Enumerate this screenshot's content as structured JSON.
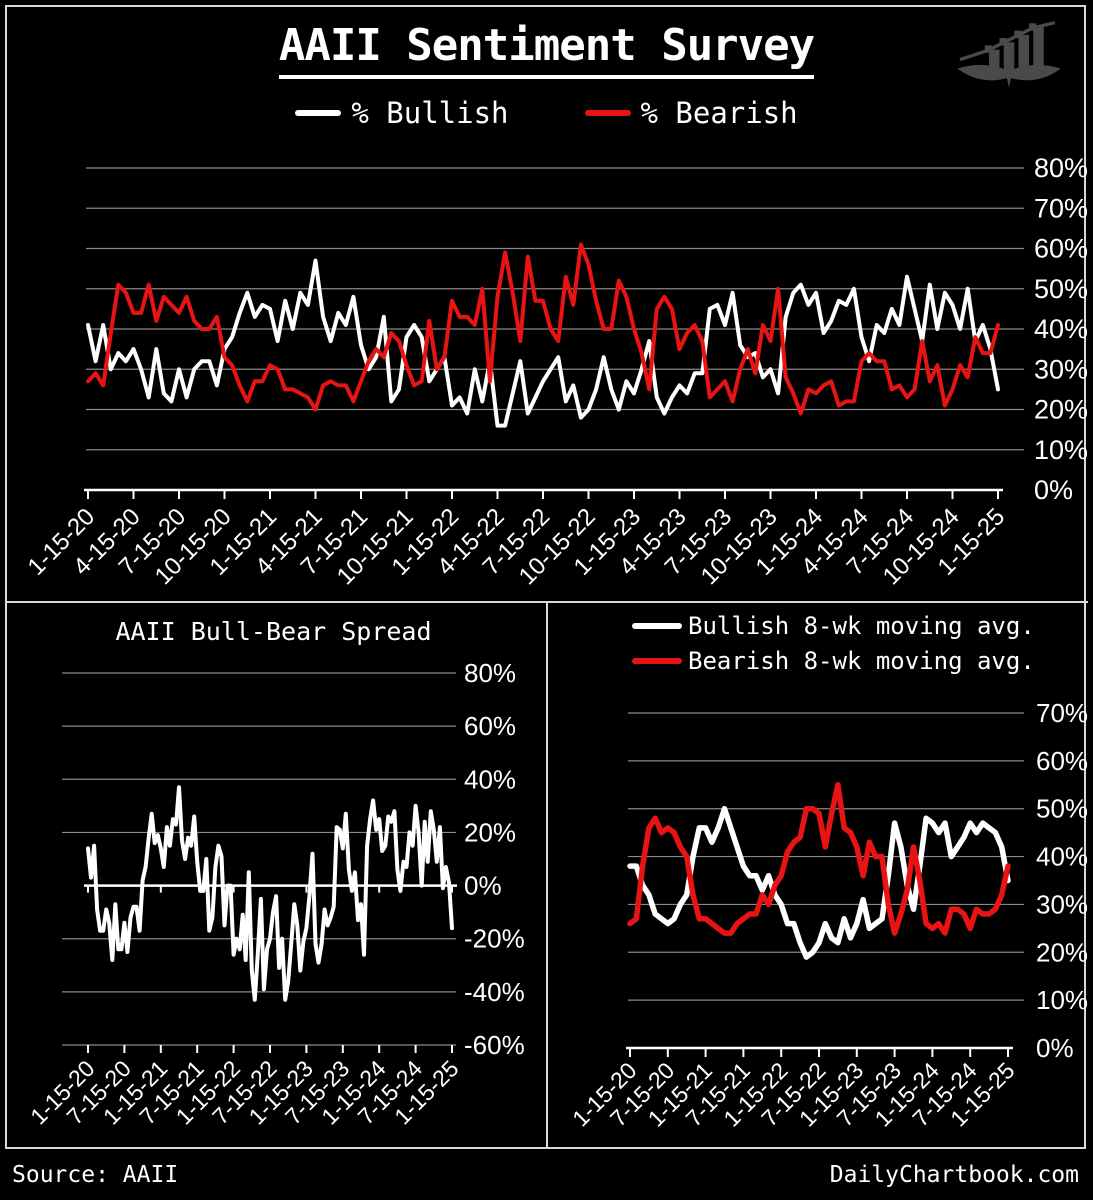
{
  "header": {
    "title": "AAII Sentiment Survey"
  },
  "footer": {
    "source": "Source: AAII",
    "site": "DailyChartbook.com"
  },
  "colors": {
    "bullish": "#ffffff",
    "bearish": "#e81414",
    "grid": "#8a8a8a",
    "axis": "#ffffff",
    "frame": "#d9d9d9",
    "background": "#000000",
    "logo": "#4a4a4a"
  },
  "chart_data": [
    {
      "id": "sentiment",
      "type": "line",
      "title": "AAII Sentiment Survey",
      "legend": [
        {
          "label": "% Bullish",
          "color": "#ffffff"
        },
        {
          "label": "% Bearish",
          "color": "#e81414"
        }
      ],
      "ylim": [
        0,
        80
      ],
      "yticks": [
        0,
        10,
        20,
        30,
        40,
        50,
        60,
        70,
        80
      ],
      "grid": true,
      "legend_position": "top-center",
      "x_frequency": "semi-monthly",
      "x_tick_labels": [
        "1-15-20",
        "4-15-20",
        "7-15-20",
        "10-15-20",
        "1-15-21",
        "4-15-21",
        "7-15-21",
        "10-15-21",
        "1-15-22",
        "4-15-22",
        "7-15-22",
        "10-15-22",
        "1-15-23",
        "4-15-23",
        "7-15-23",
        "10-15-23",
        "1-15-24",
        "4-15-24",
        "7-15-24",
        "10-15-24",
        "1-15-25"
      ],
      "series": [
        {
          "name": "% Bullish",
          "color": "#ffffff",
          "values": [
            41,
            32,
            41,
            30,
            34,
            32,
            35,
            30,
            23,
            35,
            24,
            22,
            30,
            23,
            30,
            32,
            32,
            26,
            35,
            38,
            44,
            49,
            43,
            46,
            45,
            37,
            47,
            40,
            49,
            46,
            57,
            43,
            37,
            44,
            41,
            48,
            36,
            30,
            33,
            43,
            22,
            25,
            38,
            41,
            38,
            27,
            30,
            33,
            21,
            23,
            19,
            30,
            22,
            32,
            16,
            16,
            24,
            32,
            19,
            23,
            27,
            30,
            33,
            22,
            26,
            18,
            20,
            25,
            33,
            25,
            20,
            27,
            24,
            30,
            37,
            23,
            19,
            23,
            26,
            24,
            29,
            29,
            45,
            46,
            41,
            49,
            36,
            33,
            34,
            28,
            30,
            24,
            43,
            49,
            51,
            46,
            49,
            39,
            42,
            47,
            46,
            50,
            38,
            32,
            41,
            39,
            45,
            41,
            53,
            45,
            37,
            51,
            40,
            49,
            46,
            40,
            50,
            37,
            41,
            35,
            25
          ]
        },
        {
          "name": "% Bearish",
          "color": "#e81414",
          "values": [
            27,
            29,
            26,
            39,
            51,
            49,
            44,
            44,
            51,
            42,
            48,
            46,
            44,
            48,
            42,
            40,
            40,
            43,
            33,
            31,
            26,
            22,
            27,
            27,
            31,
            30,
            25,
            25,
            24,
            23,
            20,
            26,
            27,
            26,
            26,
            22,
            27,
            32,
            35,
            33,
            39,
            37,
            31,
            26,
            27,
            42,
            30,
            33,
            47,
            43,
            43,
            41,
            50,
            27,
            48,
            59,
            49,
            37,
            58,
            47,
            47,
            40,
            37,
            53,
            46,
            61,
            56,
            47,
            40,
            40,
            52,
            48,
            40,
            34,
            25,
            45,
            48,
            45,
            35,
            39,
            41,
            37,
            23,
            25,
            27,
            22,
            30,
            35,
            29,
            41,
            37,
            50,
            28,
            24,
            19,
            25,
            24,
            26,
            27,
            21,
            22,
            22,
            32,
            34,
            32,
            32,
            25,
            26,
            23,
            25,
            37,
            27,
            31,
            21,
            25,
            31,
            28,
            38,
            34,
            34,
            41
          ]
        }
      ]
    },
    {
      "id": "spread",
      "type": "line",
      "title": "AAII Bull-Bear Spread",
      "ylim": [
        -60,
        80
      ],
      "yticks": [
        80,
        60,
        40,
        20,
        0,
        -20,
        -40,
        -60
      ],
      "grid": true,
      "x_frequency": "semi-monthly",
      "x_tick_labels": [
        "1-15-20",
        "7-15-20",
        "1-15-21",
        "7-15-21",
        "1-15-22",
        "7-15-22",
        "1-15-23",
        "7-15-23",
        "1-15-24",
        "7-15-24",
        "1-15-25"
      ],
      "series": [
        {
          "name": "Bull-Bear Spread",
          "color": "#ffffff",
          "values": [
            14,
            3,
            15,
            -9,
            -17,
            -17,
            -9,
            -14,
            -28,
            -7,
            -24,
            -24,
            -14,
            -25,
            -12,
            -8,
            -8,
            -17,
            2,
            7,
            18,
            27,
            16,
            19,
            14,
            7,
            22,
            15,
            25,
            23,
            37,
            17,
            10,
            18,
            15,
            26,
            9,
            -2,
            -2,
            10,
            -17,
            -12,
            7,
            15,
            11,
            -15,
            0,
            0,
            -26,
            -20,
            -24,
            -11,
            -28,
            5,
            -32,
            -43,
            -25,
            -5,
            -39,
            -24,
            -20,
            -10,
            -4,
            -31,
            -20,
            -43,
            -36,
            -22,
            -7,
            -15,
            -32,
            -21,
            -16,
            -4,
            12,
            -22,
            -29,
            -22,
            -9,
            -15,
            -12,
            -8,
            22,
            21,
            14,
            27,
            6,
            -2,
            5,
            -13,
            -7,
            -26,
            15,
            25,
            32,
            21,
            25,
            13,
            15,
            26,
            24,
            28,
            6,
            -2,
            9,
            7,
            20,
            15,
            30,
            20,
            0,
            24,
            9,
            28,
            21,
            9,
            22,
            -1,
            7,
            1,
            -16
          ]
        }
      ]
    },
    {
      "id": "moving-averages",
      "type": "line",
      "title": "",
      "legend": [
        {
          "label": "Bullish 8-wk moving avg.",
          "color": "#ffffff"
        },
        {
          "label": "Bearish 8-wk moving avg.",
          "color": "#e81414"
        }
      ],
      "ylim": [
        0,
        70
      ],
      "yticks": [
        0,
        10,
        20,
        30,
        40,
        50,
        60,
        70
      ],
      "grid": true,
      "legend_position": "top-center",
      "x_frequency": "monthly",
      "x_tick_labels": [
        "1-15-20",
        "7-15-20",
        "1-15-21",
        "7-15-21",
        "1-15-22",
        "7-15-22",
        "1-15-23",
        "7-15-23",
        "1-15-24",
        "7-15-24",
        "1-15-25"
      ],
      "series": [
        {
          "name": "Bullish 8-wk moving avg.",
          "color": "#ffffff",
          "values": [
            38,
            38,
            34,
            32,
            28,
            27,
            26,
            27,
            30,
            32,
            40,
            46,
            46,
            43,
            46,
            50,
            46,
            42,
            38,
            36,
            36,
            33,
            36,
            32,
            30,
            26,
            26,
            22,
            19,
            20,
            22,
            26,
            23,
            22,
            27,
            23,
            26,
            31,
            25,
            26,
            27,
            36,
            47,
            42,
            34,
            29,
            38,
            48,
            47,
            45,
            47,
            40,
            42,
            44,
            47,
            45,
            47,
            46,
            45,
            42,
            35
          ]
        },
        {
          "name": "Bearish 8-wk moving avg.",
          "color": "#e81414",
          "values": [
            26,
            27,
            38,
            46,
            48,
            45,
            46,
            45,
            42,
            40,
            32,
            27,
            27,
            26,
            25,
            24,
            24,
            26,
            27,
            28,
            28,
            32,
            30,
            34,
            36,
            41,
            43,
            44,
            50,
            50,
            49,
            42,
            49,
            55,
            46,
            45,
            42,
            36,
            43,
            40,
            40,
            30,
            24,
            28,
            33,
            42,
            35,
            26,
            25,
            26,
            24,
            29,
            29,
            28,
            25,
            29,
            28,
            28,
            29,
            32,
            38
          ]
        }
      ]
    }
  ]
}
